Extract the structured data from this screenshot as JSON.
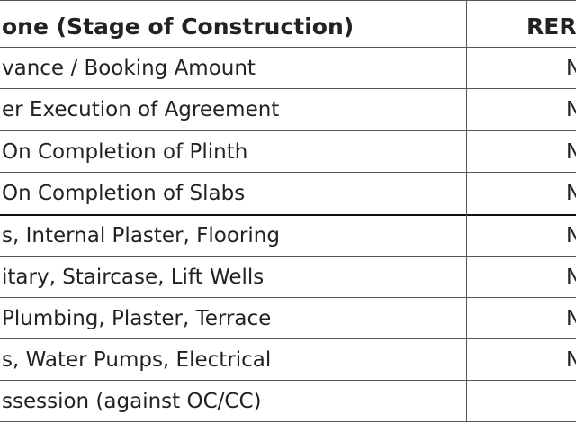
{
  "table": {
    "header": [
      "one (Stage of Construction)",
      "RER"
    ],
    "rows": [
      [
        "vance / Booking Amount",
        "N"
      ],
      [
        "er Execution of Agreement",
        "N"
      ],
      [
        "On Completion of Plinth",
        "N"
      ],
      [
        "On Completion of Slabs",
        "N"
      ],
      [
        "s, Internal Plaster, Flooring",
        "N"
      ],
      [
        "itary, Staircase, Lift Wells",
        "N"
      ],
      [
        "Plumbing, Plaster, Terrace",
        "N"
      ],
      [
        "s, Water Pumps, Electrical",
        "N"
      ],
      [
        "ssession (against OC/CC)"
      ]
    ]
  }
}
